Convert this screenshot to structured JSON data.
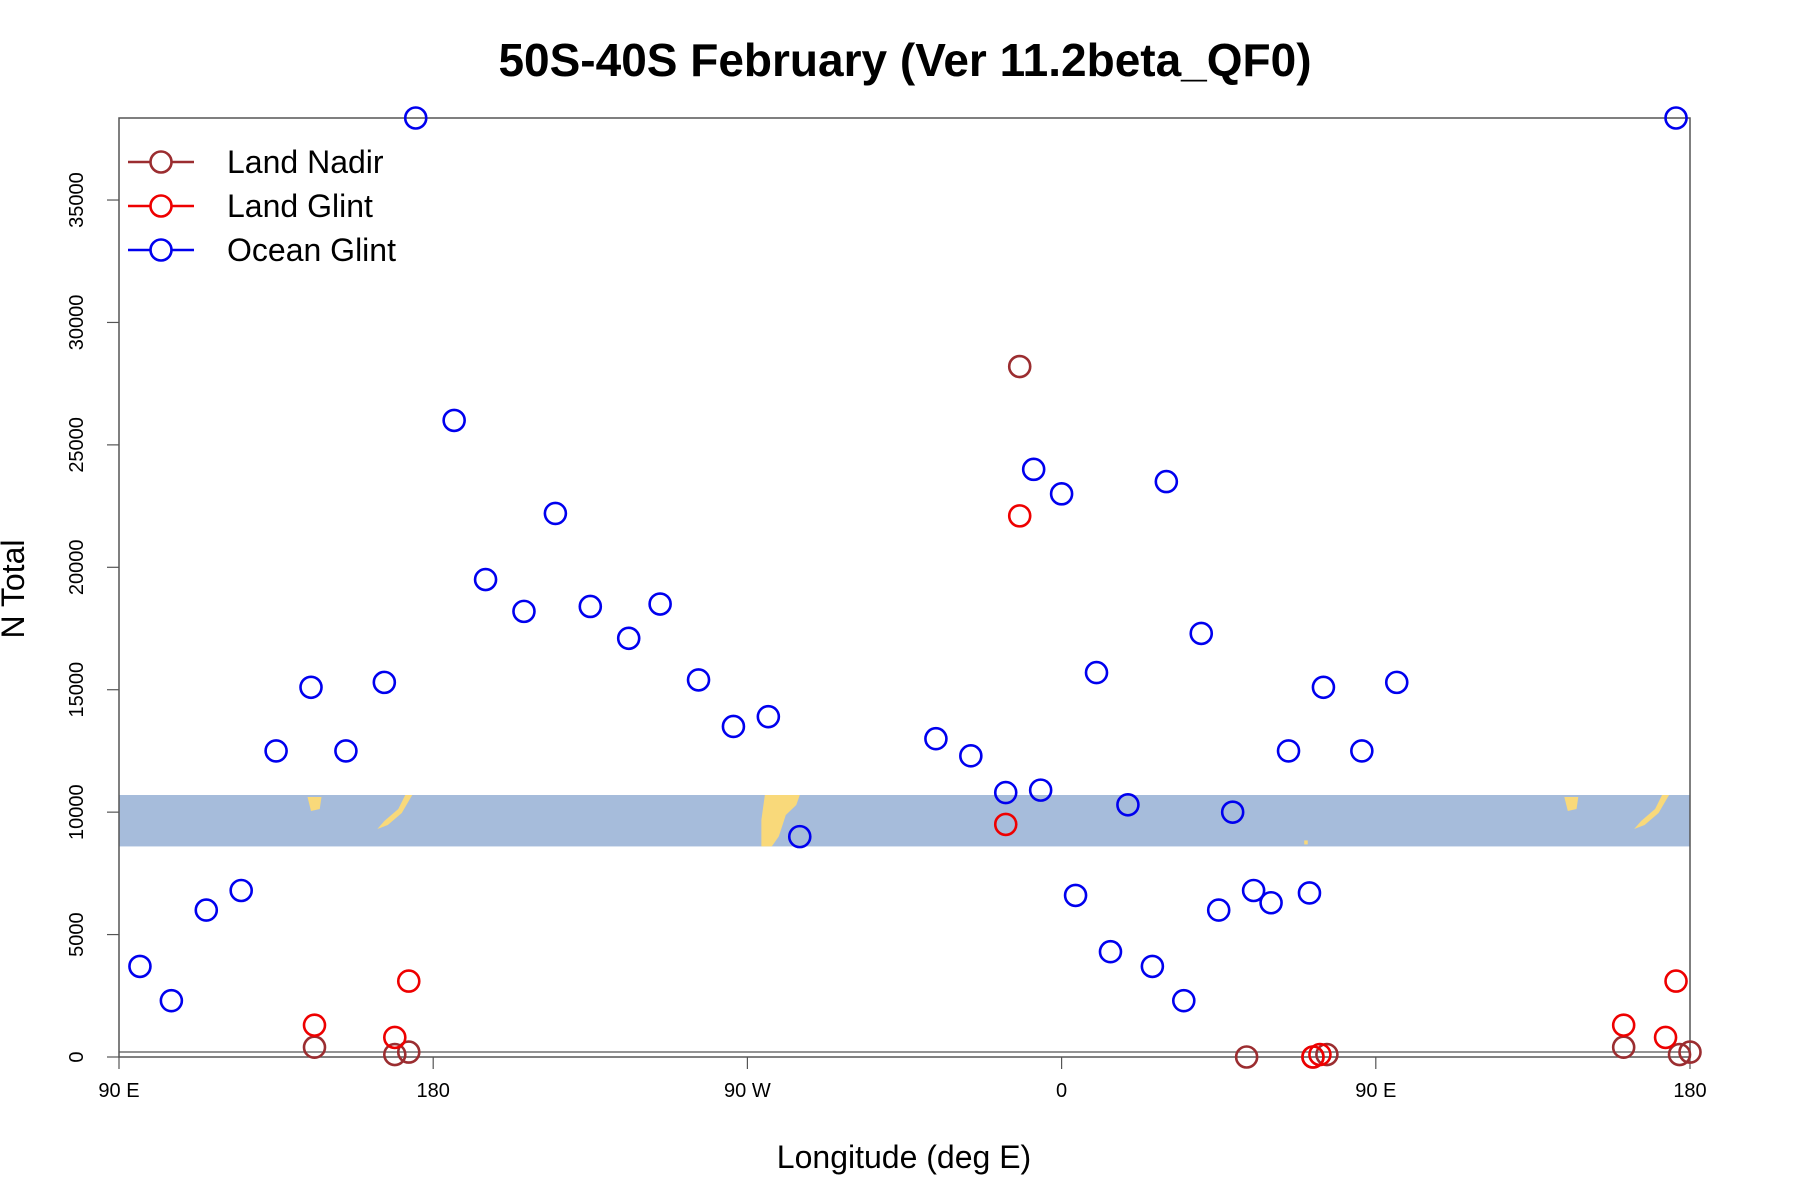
{
  "chart_data": {
    "type": "scatter",
    "title": "50S-40S February (Ver 11.2beta_QF0)",
    "xlabel": "Longitude (deg E)",
    "ylabel": "N Total",
    "xlim": [
      90,
      540
    ],
    "ylim": [
      0,
      38350
    ],
    "x_ticks": [
      {
        "value": 90,
        "label": "90 E"
      },
      {
        "value": 180,
        "label": "180"
      },
      {
        "value": 270,
        "label": "90 W"
      },
      {
        "value": 360,
        "label": "0"
      },
      {
        "value": 450,
        "label": "90 E"
      },
      {
        "value": 540,
        "label": "180"
      }
    ],
    "y_ticks": [
      {
        "value": 0,
        "label": "0"
      },
      {
        "value": 5000,
        "label": "5000"
      },
      {
        "value": 10000,
        "label": "10000"
      },
      {
        "value": 15000,
        "label": "15000"
      },
      {
        "value": 20000,
        "label": "20000"
      },
      {
        "value": 25000,
        "label": "25000"
      },
      {
        "value": 30000,
        "label": "30000"
      },
      {
        "value": 35000,
        "label": "35000"
      }
    ],
    "legend_position": "top-left",
    "grid": false,
    "band": {
      "y_range": [
        8600,
        10700
      ],
      "color": "#a6bcdb",
      "land_color": "#f9d97a"
    },
    "series": [
      {
        "name": "Land Nadir",
        "color": "#9b2d30",
        "points": [
          [
            146,
            400
          ],
          [
            169,
            100
          ],
          [
            173,
            200
          ],
          [
            348,
            28200
          ],
          [
            413,
            0
          ],
          [
            432,
            0
          ],
          [
            436,
            100
          ],
          [
            521,
            400
          ],
          [
            537,
            100
          ],
          [
            540,
            200
          ]
        ]
      },
      {
        "name": "Land Glint",
        "color": "#ee0000",
        "points": [
          [
            146,
            1300
          ],
          [
            169,
            800
          ],
          [
            173,
            3100
          ],
          [
            344,
            9500
          ],
          [
            348,
            22100
          ],
          [
            432,
            0
          ],
          [
            434,
            100
          ],
          [
            521,
            1300
          ],
          [
            533,
            800
          ],
          [
            536,
            3100
          ]
        ]
      },
      {
        "name": "Ocean Glint",
        "color": "#0000ee",
        "points": [
          [
            96,
            3700
          ],
          [
            105,
            2300
          ],
          [
            115,
            6000
          ],
          [
            125,
            6800
          ],
          [
            135,
            12500
          ],
          [
            145,
            15100
          ],
          [
            155,
            12500
          ],
          [
            166,
            15300
          ],
          [
            175,
            38350
          ],
          [
            186,
            26000
          ],
          [
            195,
            19500
          ],
          [
            206,
            18200
          ],
          [
            215,
            22200
          ],
          [
            225,
            18400
          ],
          [
            236,
            17100
          ],
          [
            245,
            18500
          ],
          [
            256,
            15400
          ],
          [
            266,
            13500
          ],
          [
            276,
            13900
          ],
          [
            285,
            9000
          ],
          [
            352,
            24000
          ],
          [
            360,
            23000
          ],
          [
            370,
            15700
          ],
          [
            379,
            10300
          ],
          [
            390,
            23500
          ],
          [
            400,
            17300
          ],
          [
            409,
            10000
          ],
          [
            420,
            6300
          ],
          [
            431,
            6700
          ],
          [
            324,
            13000
          ],
          [
            334,
            12300
          ],
          [
            344,
            10800
          ],
          [
            354,
            10900
          ],
          [
            364,
            6600
          ],
          [
            374,
            4300
          ],
          [
            386,
            3700
          ],
          [
            395,
            2300
          ],
          [
            405,
            6000
          ],
          [
            415,
            6800
          ],
          [
            425,
            12500
          ],
          [
            435,
            15100
          ],
          [
            446,
            12500
          ],
          [
            456,
            15300
          ],
          [
            536,
            38350
          ]
        ]
      }
    ]
  }
}
